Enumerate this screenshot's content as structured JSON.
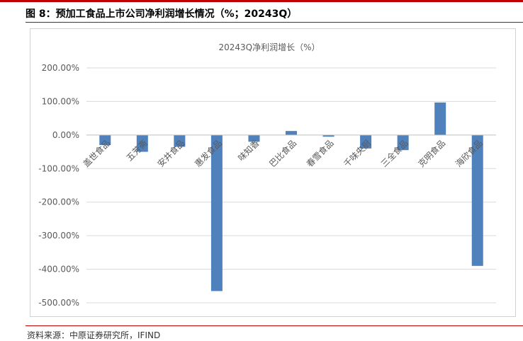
{
  "figure": {
    "title": "图 8：预加工食品上市公司净利润增长情况（%；20243Q）",
    "source": "资料来源：中原证券研究所，IFIND"
  },
  "colors": {
    "accent_rule": "#c00000",
    "bar": "#4f81bd",
    "grid": "#d9d9d9"
  },
  "chart_data": {
    "type": "bar",
    "title": "20243Q净利润增长（%）",
    "categories": [
      "盖世食品",
      "五芳斋",
      "安井食品",
      "惠发食品",
      "味知香",
      "巴比食品",
      "春雪食品",
      "千味央厨",
      "三全食品",
      "克明食品",
      "海欣食品"
    ],
    "values": [
      -30,
      -50,
      -35,
      -465,
      -20,
      12,
      -5,
      -40,
      -45,
      97,
      -390
    ],
    "unit": "%",
    "ylim": [
      -500,
      200
    ],
    "yticks": [
      200,
      100,
      0,
      -100,
      -200,
      -300,
      -400,
      -500
    ],
    "ytick_labels": [
      "200.00%",
      "100.00%",
      "0.00%",
      "-100.00%",
      "-200.00%",
      "-300.00%",
      "-400.00%",
      "-500.00%"
    ],
    "grid": true,
    "legend": "none"
  }
}
